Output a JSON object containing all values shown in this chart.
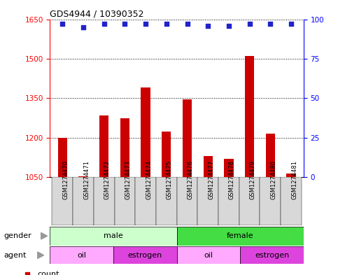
{
  "title": "GDS4944 / 10390352",
  "samples": [
    "GSM1274470",
    "GSM1274471",
    "GSM1274472",
    "GSM1274473",
    "GSM1274474",
    "GSM1274475",
    "GSM1274476",
    "GSM1274477",
    "GSM1274478",
    "GSM1274479",
    "GSM1274480",
    "GSM1274481"
  ],
  "counts": [
    1200,
    1055,
    1285,
    1275,
    1390,
    1225,
    1345,
    1130,
    1120,
    1510,
    1215,
    1065
  ],
  "percentile_ranks": [
    97,
    95,
    97,
    97,
    97,
    97,
    97,
    96,
    96,
    97,
    97,
    97
  ],
  "bar_color": "#cc0000",
  "dot_color": "#2222cc",
  "ymin": 1050,
  "ymax": 1650,
  "yticks": [
    1050,
    1200,
    1350,
    1500,
    1650
  ],
  "right_yticks": [
    0,
    25,
    50,
    75,
    100
  ],
  "gender_male_range": [
    0,
    6
  ],
  "gender_female_range": [
    6,
    12
  ],
  "gender_male_color": "#ccffcc",
  "gender_female_color": "#44dd44",
  "agent_oil1_range": [
    0,
    3
  ],
  "agent_estrogen1_range": [
    3,
    6
  ],
  "agent_oil2_range": [
    6,
    9
  ],
  "agent_estrogen2_range": [
    9,
    12
  ],
  "agent_oil_color": "#ffaaff",
  "agent_estrogen_color": "#dd44dd",
  "legend_count_color": "#cc0000",
  "legend_dot_color": "#2222cc"
}
